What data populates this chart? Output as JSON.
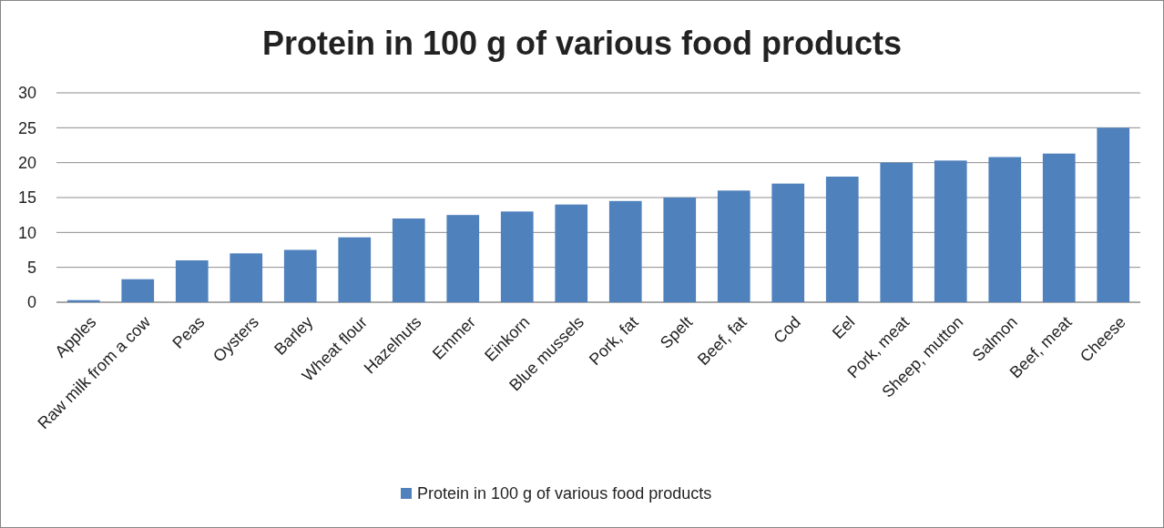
{
  "chart_data": {
    "type": "bar",
    "title": "Protein in 100 g of various food products",
    "categories": [
      "Apples",
      "Raw milk from a cow",
      "Peas",
      "Oysters",
      "Barley",
      "Wheat flour",
      "Hazelnuts",
      "Emmer",
      "Einkorn",
      "Blue mussels",
      "Pork, fat",
      "Spelt",
      "Beef, fat",
      "Cod",
      "Eel",
      "Pork, meat",
      "Sheep, mutton",
      "Salmon",
      "Beef, meat",
      "Cheese"
    ],
    "series": [
      {
        "name": "Protein in 100 g of various food products",
        "color": "#4f81bd",
        "values": [
          0.3,
          3.3,
          6,
          7,
          7.5,
          9.3,
          12,
          12.5,
          13,
          14,
          14.5,
          15,
          16,
          17,
          18,
          20,
          20.3,
          20.8,
          21.3,
          25
        ]
      }
    ],
    "ylim": [
      0,
      30
    ],
    "yticks": [
      0,
      5,
      10,
      15,
      20,
      25,
      30
    ],
    "grid": "y",
    "legend": "bottom"
  }
}
